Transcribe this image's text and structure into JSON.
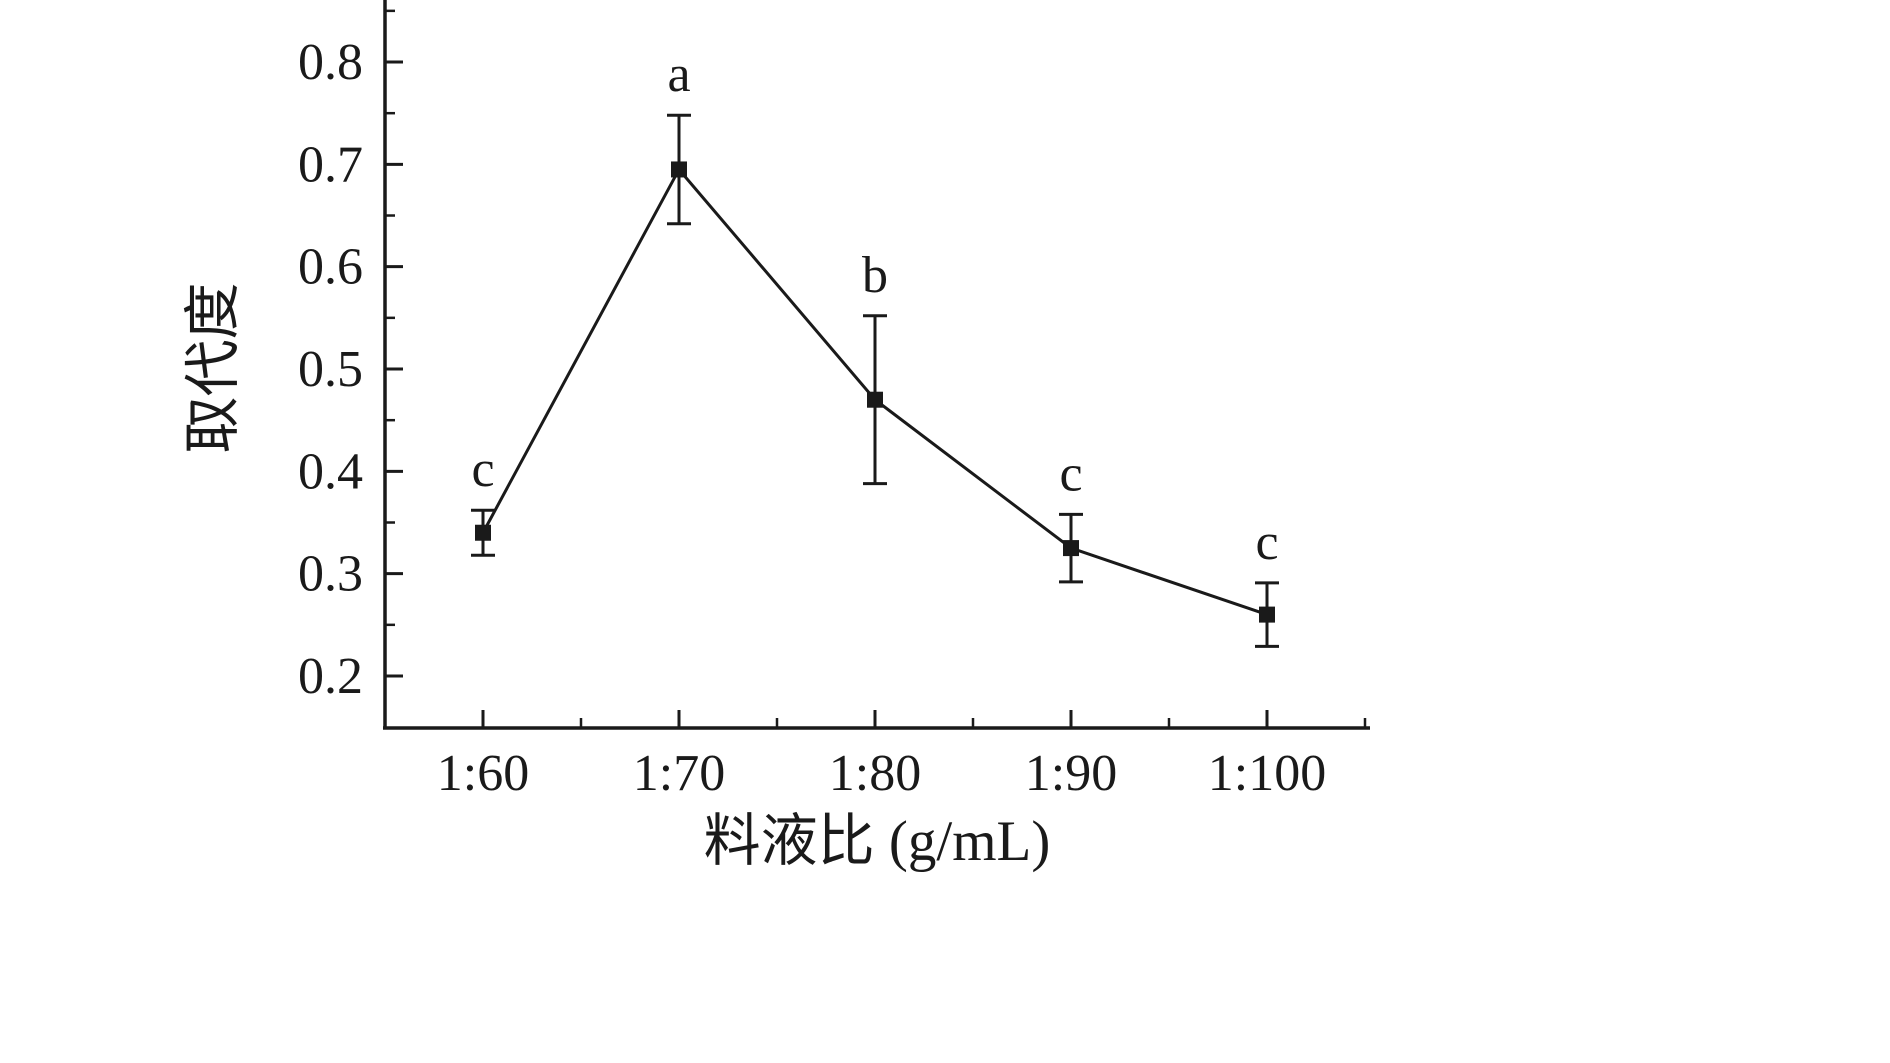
{
  "chart_data": {
    "type": "line",
    "title": "",
    "xlabel": "料液比 (g/mL)",
    "ylabel": "取代度",
    "categories": [
      "1:60",
      "1:70",
      "1:80",
      "1:90",
      "1:100"
    ],
    "series": [
      {
        "name": "取代度",
        "values": [
          0.34,
          0.695,
          0.47,
          0.325,
          0.26
        ],
        "errors": [
          0.022,
          0.053,
          0.082,
          0.033,
          0.031
        ],
        "point_labels": [
          "c",
          "a",
          "b",
          "c",
          "c"
        ]
      }
    ],
    "ylim": [
      0.15,
      0.85
    ],
    "yticks": [
      0.2,
      0.3,
      0.4,
      0.5,
      0.6,
      0.7,
      0.8
    ],
    "grid": false,
    "legend": "none",
    "marker": "square",
    "line_color": "#1a1a1a",
    "axis_color": "#1a1a1a",
    "background_color": "#ffffff"
  }
}
